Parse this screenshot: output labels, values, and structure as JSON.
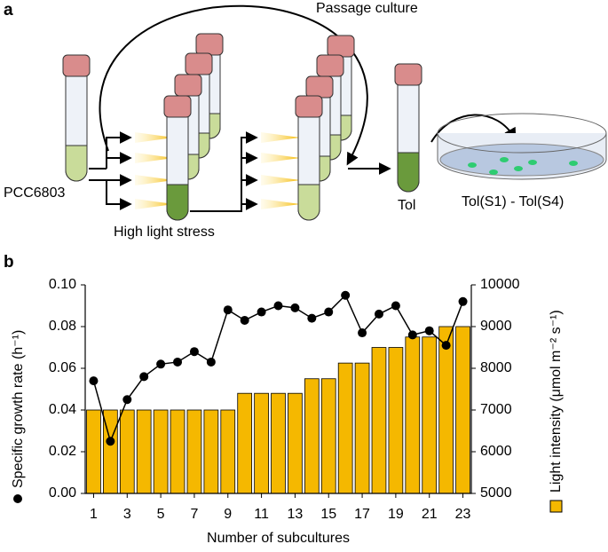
{
  "panel_a": {
    "label": "a",
    "passage": "Passage culture",
    "strain": "PCC6803",
    "stress": "High light stress",
    "tol": "Tol",
    "isolates": "Tol(S1) - Tol(S4)"
  },
  "panel_b": {
    "label": "b"
  },
  "chart_data": {
    "type": "combo",
    "x_label": "Number of subcultures",
    "y_label": "Specific growth rate (h⁻¹)",
    "y2_label": "Light intensity (μmol m⁻² s⁻¹)",
    "x": [
      1,
      2,
      3,
      4,
      5,
      6,
      7,
      8,
      9,
      10,
      11,
      12,
      13,
      14,
      15,
      16,
      17,
      18,
      19,
      20,
      21,
      22,
      23
    ],
    "xlim": [
      0.5,
      23.5
    ],
    "xticks": [
      1,
      3,
      5,
      7,
      9,
      11,
      13,
      15,
      17,
      19,
      21,
      23
    ],
    "ylim": [
      0,
      0.1
    ],
    "yticks": [
      {
        "value": 0,
        "label": "0.00"
      },
      {
        "value": 0.02,
        "label": "0.02"
      },
      {
        "value": 0.04,
        "label": "0.04"
      },
      {
        "value": 0.06,
        "label": "0.06"
      },
      {
        "value": 0.08,
        "label": "0.08"
      },
      {
        "value": 0.1,
        "label": "0.10"
      }
    ],
    "y2lim": [
      5000,
      10000
    ],
    "y2ticks": [
      5000,
      6000,
      7000,
      8000,
      9000,
      10000
    ],
    "series": [
      {
        "kind": "bar",
        "axis": "y2",
        "color": "#f5b800",
        "values": [
          7000,
          7000,
          7000,
          7000,
          7000,
          7000,
          7000,
          7000,
          7000,
          7400,
          7400,
          7400,
          7400,
          7750,
          7750,
          8125,
          8125,
          8500,
          8500,
          8750,
          8750,
          9000,
          9000
        ]
      },
      {
        "kind": "line",
        "axis": "y",
        "color": "#000000",
        "values": [
          0.054,
          0.025,
          0.045,
          0.056,
          0.062,
          0.063,
          0.068,
          0.063,
          0.088,
          0.083,
          0.087,
          0.09,
          0.089,
          0.084,
          0.087,
          0.095,
          0.077,
          0.086,
          0.09,
          0.076,
          0.078,
          0.071,
          0.092
        ]
      }
    ]
  }
}
